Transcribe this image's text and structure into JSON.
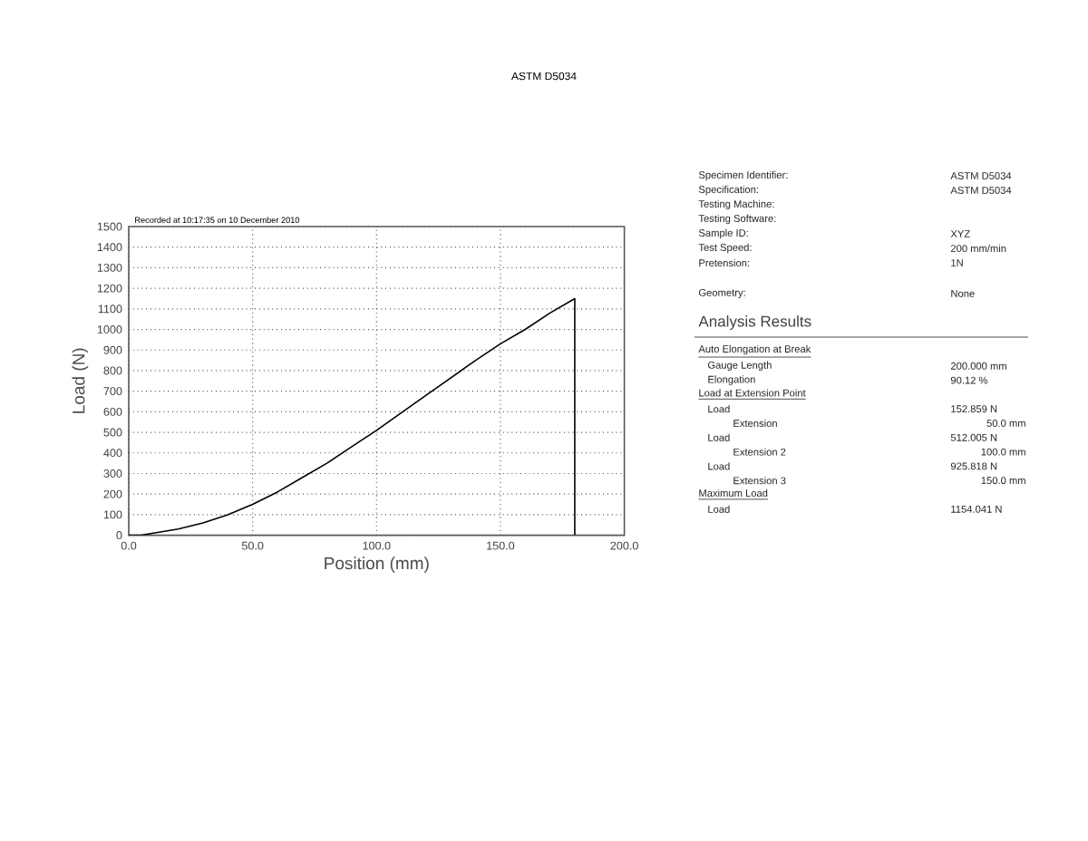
{
  "chart_data": [
    {
      "type": "line",
      "title": "ASTM D5034",
      "annotations": [
        "Recorded at 10:17:35 on 10 December 2010"
      ],
      "xlabel": "Position (mm)",
      "ylabel": "Load (N)",
      "x": [
        0,
        5,
        10,
        20,
        30,
        40,
        50,
        60,
        70,
        80,
        90,
        100,
        120,
        140,
        150,
        160,
        170,
        180,
        180
      ],
      "values": [
        0,
        0,
        10,
        30,
        60,
        100,
        150,
        210,
        280,
        350,
        430,
        510,
        680,
        850,
        930,
        1000,
        1080,
        1150,
        0
      ],
      "color": "#000000",
      "xlim": [
        0,
        200
      ],
      "xticks": [
        {
          "value": 0,
          "label": "0.0"
        },
        {
          "value": 50,
          "label": "50.0"
        },
        {
          "value": 100,
          "label": "100.0"
        },
        {
          "value": 150,
          "label": "150.0"
        },
        {
          "value": 200,
          "label": "200.0"
        }
      ],
      "ylim": [
        0,
        1500
      ],
      "yticks": [
        0,
        100,
        200,
        300,
        400,
        500,
        600,
        700,
        800,
        900,
        1000,
        1100,
        1200,
        1300,
        1400,
        1500
      ],
      "grid": true
    },
    {
      "type": "other",
      "annotations": [
        "Specimen Identifier:",
        "ASTM D5034",
        "Specification:",
        "ASTM D5034",
        "Testing Machine:",
        "Testing Software:",
        "Sample ID:",
        "XYZ",
        "Test Speed:",
        "200 mm/min",
        "Pretension:",
        "1N",
        "Geometry:",
        "None"
      ]
    },
    {
      "type": "other",
      "title": "Analysis Results",
      "annotations": [
        "Auto Elongation at Break",
        "Gauge Length",
        "200.000 mm",
        "Elongation",
        "90.12 %",
        "Load at Extension Point",
        "Load",
        "152.859 N",
        "Extension",
        "50.0 mm",
        "Load",
        "512.005 N",
        "Extension 2",
        "100.0 mm",
        "Load",
        "925.818 N",
        "Extension 3",
        "150.0 mm",
        "Maximum Load",
        "Load",
        "1154.041 N"
      ]
    }
  ]
}
